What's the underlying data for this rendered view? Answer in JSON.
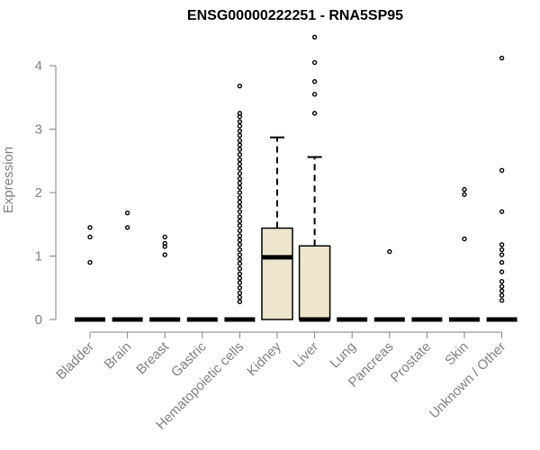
{
  "chart_data": {
    "type": "box",
    "title": "ENSG00000222251 - RNA5SP95",
    "xlabel": "",
    "ylabel": "Expression",
    "ylim": [
      0,
      4.45
    ],
    "yticks": [
      "0",
      "1",
      "2",
      "3",
      "4"
    ],
    "categories": [
      "Bladder",
      "Brain",
      "Breast",
      "Gastric",
      "Hematopoietic cells",
      "Kidney",
      "Liver",
      "Lung",
      "Pancreas",
      "Prostate",
      "Skin",
      "Unknown / Other"
    ],
    "colors": {
      "box_fill": "#ede6cd",
      "stroke": "#000000",
      "axis": "#808080"
    },
    "boxes": [
      {
        "category": "Bladder",
        "q1": 0,
        "median": 0,
        "q3": 0,
        "whisker_low": 0,
        "whisker_high": 0,
        "outliers": [
          0.9,
          1.3,
          1.45
        ]
      },
      {
        "category": "Brain",
        "q1": 0,
        "median": 0,
        "q3": 0,
        "whisker_low": 0,
        "whisker_high": 0,
        "outliers": [
          1.45,
          1.68
        ]
      },
      {
        "category": "Breast",
        "q1": 0,
        "median": 0,
        "q3": 0,
        "whisker_low": 0,
        "whisker_high": 0,
        "outliers": [
          1.02,
          1.15,
          1.2,
          1.3
        ]
      },
      {
        "category": "Gastric",
        "q1": 0,
        "median": 0,
        "q3": 0,
        "whisker_low": 0,
        "whisker_high": 0,
        "outliers": []
      },
      {
        "category": "Hematopoietic cells",
        "q1": 0,
        "median": 0,
        "q3": 0,
        "whisker_low": 0,
        "whisker_high": 0,
        "outliers": [
          0.28,
          0.35,
          0.42,
          0.5,
          0.58,
          0.65,
          0.72,
          0.8,
          0.88,
          0.95,
          1.02,
          1.1,
          1.18,
          1.25,
          1.32,
          1.4,
          1.48,
          1.55,
          1.62,
          1.7,
          1.78,
          1.85,
          1.92,
          2.0,
          2.08,
          2.15,
          2.22,
          2.3,
          2.38,
          2.45,
          2.52,
          2.6,
          2.68,
          2.75,
          2.82,
          2.9,
          2.97,
          3.05,
          3.12,
          3.2,
          3.25,
          3.68
        ]
      },
      {
        "category": "Kidney",
        "q1": 0,
        "median": 0.98,
        "q3": 1.44,
        "whisker_low": 0,
        "whisker_high": 2.87,
        "outliers": []
      },
      {
        "category": "Liver",
        "q1": 0,
        "median": 0,
        "q3": 1.16,
        "whisker_low": 0,
        "whisker_high": 2.56,
        "outliers": [
          3.25,
          3.55,
          3.75,
          4.05,
          4.45
        ]
      },
      {
        "category": "Lung",
        "q1": 0,
        "median": 0,
        "q3": 0,
        "whisker_low": 0,
        "whisker_high": 0,
        "outliers": []
      },
      {
        "category": "Pancreas",
        "q1": 0,
        "median": 0,
        "q3": 0,
        "whisker_low": 0,
        "whisker_high": 0,
        "outliers": [
          1.07
        ]
      },
      {
        "category": "Prostate",
        "q1": 0,
        "median": 0,
        "q3": 0,
        "whisker_low": 0,
        "whisker_high": 0,
        "outliers": []
      },
      {
        "category": "Skin",
        "q1": 0,
        "median": 0,
        "q3": 0,
        "whisker_low": 0,
        "whisker_high": 0,
        "outliers": [
          1.27,
          1.97,
          2.05
        ]
      },
      {
        "category": "Unknown / Other",
        "q1": 0,
        "median": 0,
        "q3": 0,
        "whisker_low": 0,
        "whisker_high": 0,
        "outliers": [
          0.3,
          0.38,
          0.45,
          0.52,
          0.6,
          0.75,
          0.9,
          1.02,
          1.1,
          1.18,
          1.7,
          2.35,
          4.12
        ]
      }
    ]
  }
}
